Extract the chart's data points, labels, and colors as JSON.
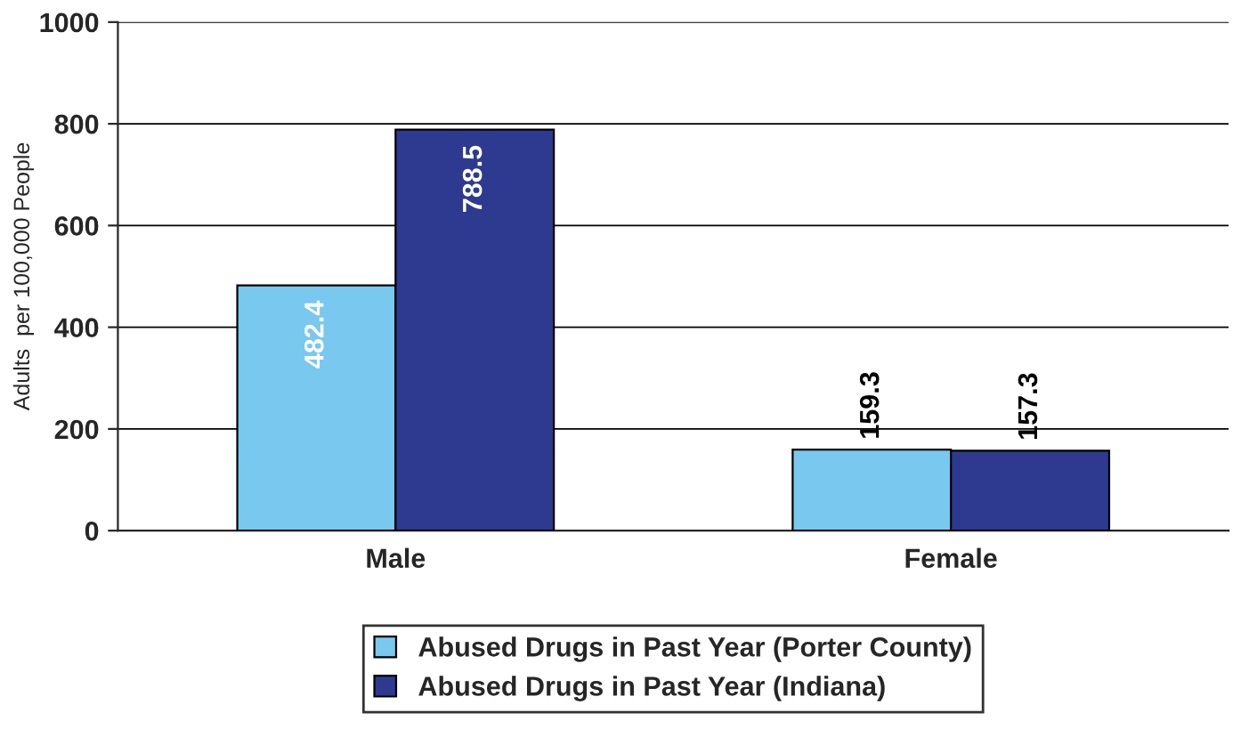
{
  "chart_data": {
    "type": "bar",
    "ylabel": "Adults  per 100,000 People",
    "categories": [
      "Male",
      "Female"
    ],
    "series": [
      {
        "name": "Abused Drugs in Past Year (Porter County)",
        "color": "#78c8f0",
        "values": [
          482.4,
          159.3
        ]
      },
      {
        "name": "Abused Drugs in Past Year (Indiana)",
        "color": "#2e3a8f",
        "values": [
          788.5,
          157.3
        ]
      }
    ],
    "ylim": [
      0,
      1000
    ],
    "yticks": [
      0,
      200,
      400,
      600,
      800,
      1000
    ],
    "grid": "y",
    "legend": "bottom",
    "data_labels": true
  }
}
